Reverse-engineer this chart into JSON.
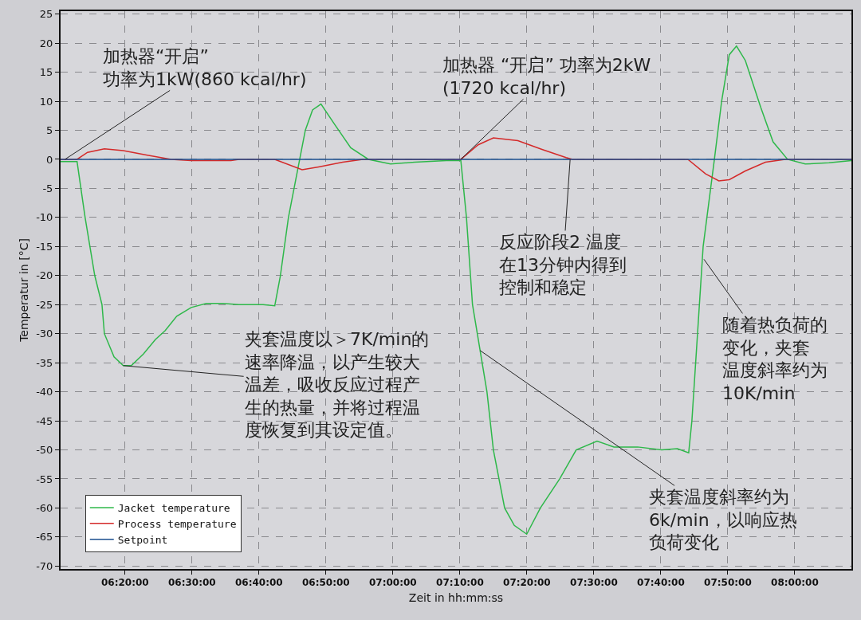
{
  "chart_data": {
    "type": "line",
    "xlabel": "Zeit in hh:mm:ss",
    "ylabel": "Temperatur in [°C]",
    "xlim": [
      6.173,
      8.141
    ],
    "ylim": [
      -70.5,
      25.5
    ],
    "xticks": [
      {
        "value": 6.3333,
        "label": "06:20:00"
      },
      {
        "value": 6.5,
        "label": "06:30:00"
      },
      {
        "value": 6.6667,
        "label": "06:40:00"
      },
      {
        "value": 6.8333,
        "label": "06:50:00"
      },
      {
        "value": 7,
        "label": "07:00:00"
      },
      {
        "value": 7.1667,
        "label": "07:10:00"
      },
      {
        "value": 7.3333,
        "label": "07:20:00"
      },
      {
        "value": 7.5,
        "label": "07:30:00"
      },
      {
        "value": 7.6667,
        "label": "07:40:00"
      },
      {
        "value": 7.8333,
        "label": "07:50:00"
      },
      {
        "value": 8,
        "label": "08:00:00"
      }
    ],
    "yticks": [
      -70,
      -65,
      -60,
      -55,
      -50,
      -45,
      -40,
      -35,
      -30,
      -25,
      -20,
      -15,
      -10,
      -5,
      0,
      5,
      10,
      15,
      20,
      25
    ],
    "grid": true,
    "legend": "bottom left",
    "marker": "none",
    "line_style": "solid",
    "series": [
      {
        "name": "Jacket temperature",
        "color": "#2eb84a",
        "x": [
          6.173,
          6.214,
          6.234,
          6.258,
          6.276,
          6.282,
          6.306,
          6.329,
          6.349,
          6.379,
          6.409,
          6.433,
          6.462,
          6.498,
          6.536,
          6.577,
          6.617,
          6.677,
          6.706,
          6.72,
          6.74,
          6.768,
          6.782,
          6.8,
          6.821,
          6.855,
          6.895,
          6.939,
          6.994,
          7.054,
          7.133,
          7.169,
          7.183,
          7.193,
          7.198,
          7.234,
          7.25,
          7.278,
          7.302,
          7.333,
          7.367,
          7.415,
          7.456,
          7.508,
          7.55,
          7.609,
          7.669,
          7.708,
          7.736,
          7.744,
          7.758,
          7.772,
          7.8,
          7.818,
          7.837,
          7.855,
          7.877,
          7.915,
          7.946,
          7.982,
          8.026,
          8.085,
          8.141
        ],
        "values": [
          -0.4,
          -0.4,
          -10,
          -20,
          -25,
          -30,
          -34,
          -35.5,
          -35.5,
          -33.5,
          -31,
          -29.5,
          -27,
          -25.5,
          -24.8,
          -24.8,
          -25,
          -25,
          -25.2,
          -20,
          -10,
          0,
          5,
          8.5,
          9.5,
          6,
          2,
          0,
          -0.8,
          -0.5,
          -0.2,
          -0.2,
          -10,
          -20,
          -25,
          -40,
          -50,
          -60,
          -63,
          -64.5,
          -60,
          -55,
          -50,
          -48.5,
          -49.5,
          -49.5,
          -50,
          -49.8,
          -50.5,
          -45,
          -30,
          -15,
          0,
          10,
          18,
          19.5,
          17,
          9,
          3,
          0,
          -0.8,
          -0.6,
          -0.2
        ]
      },
      {
        "name": "Process temperature",
        "color": "#d42a2a",
        "x": [
          6.173,
          6.214,
          6.24,
          6.282,
          6.329,
          6.389,
          6.448,
          6.498,
          6.597,
          6.617,
          6.706,
          6.774,
          6.815,
          6.875,
          6.925,
          7.169,
          7.212,
          7.25,
          7.311,
          7.371,
          7.431,
          7.447,
          7.734,
          7.778,
          7.811,
          7.837,
          7.877,
          7.927,
          7.976,
          8.141
        ],
        "values": [
          0,
          0,
          1.2,
          1.8,
          1.5,
          0.7,
          0,
          -0.2,
          -0.2,
          0,
          0,
          -1.8,
          -1.3,
          -0.5,
          0,
          0,
          2.5,
          3.7,
          3.2,
          1.7,
          0.3,
          0,
          0,
          -2.5,
          -3.7,
          -3.5,
          -2,
          -0.5,
          0,
          0
        ]
      },
      {
        "name": "Setpoint",
        "color": "#1b4f8f",
        "x": [
          6.173,
          8.141
        ],
        "values": [
          0,
          0
        ]
      }
    ],
    "annotations": [
      {
        "text": "加热器“开启”\n功率为1kW(860 kcal/hr)",
        "x": 6.184,
        "y": 0
      },
      {
        "text": "加热器 “开启” 功率为2kW\n(1720 kcal/hr)",
        "x": 7.169,
        "y": 0
      },
      {
        "text": "反应阶段2 温度在13分钟内得到控制和稳定",
        "x": 7.441,
        "y": 0
      },
      {
        "text": "夹套温度以＞7K/min的速率降温，以产生较大温差，吸收反应过程产生的热量，并将过程温度恢复到其设定值。",
        "x": 6.329,
        "y": -35.5
      },
      {
        "text": "随着热负荷的变化，夹套温度斜率约为10K/min",
        "x": 7.774,
        "y": -17.2
      },
      {
        "text": "夹套温度斜率约为6k/min，以响应热负荷变化",
        "x": 7.217,
        "y": -32.9
      }
    ]
  }
}
